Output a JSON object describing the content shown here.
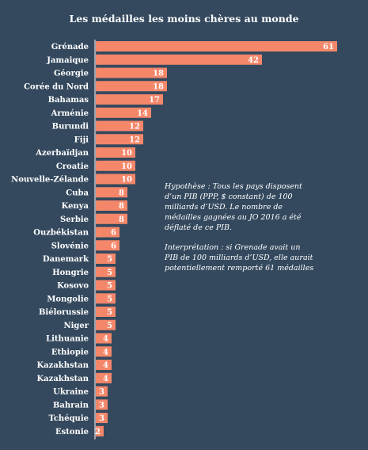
{
  "chart_data": {
    "type": "bar",
    "orientation": "horizontal",
    "title": "Les médailles les moins chères  au monde",
    "categories": [
      "Grénade",
      "Jamaique",
      "Géorgie",
      "Corée du Nord",
      "Bahamas",
      "Arménie",
      "Burundi",
      "Fiji",
      "Azerbaïdjan",
      "Croatie",
      "Nouvelle-Zélande",
      "Cuba",
      "Kenya",
      "Serbie",
      "Ouzbékistan",
      "Slovénie",
      "Danemark",
      "Hongrie",
      "Kosovo",
      "Mongolie",
      "Biélorussie",
      "Niger",
      "Lithuanie",
      "Ethiopie",
      "Kazakhstan",
      "Kazakhstan",
      "Ukraine",
      "Bahrain",
      "Tchéquie",
      "Estonie"
    ],
    "values": [
      61,
      42,
      18,
      18,
      17,
      14,
      12,
      12,
      10,
      10,
      10,
      8,
      8,
      8,
      6,
      6,
      5,
      5,
      5,
      5,
      5,
      5,
      4,
      4,
      4,
      4,
      3,
      3,
      3,
      2
    ],
    "xlim": [
      0,
      64
    ],
    "bar_color": "#f4876a",
    "label_color": "#ffffff",
    "grid": false,
    "legend": "none"
  },
  "notes": {
    "hypothesis": "Hypothèse : Tous les pays disposent d’un PIB (PPP, $ constant) de 100 milliards d’USD. Le nombre de médailles gagnées au JO 2016 a été déflaté de ce PIB.",
    "interpretation": "Interprétation : si Grenade avait un PIB de 100 milliards d’USD, elle aurait potentiellement remporté 61 médailles"
  },
  "colors": {
    "background": "#34495e",
    "bar": "#f4876a",
    "text": "#ffffff"
  }
}
